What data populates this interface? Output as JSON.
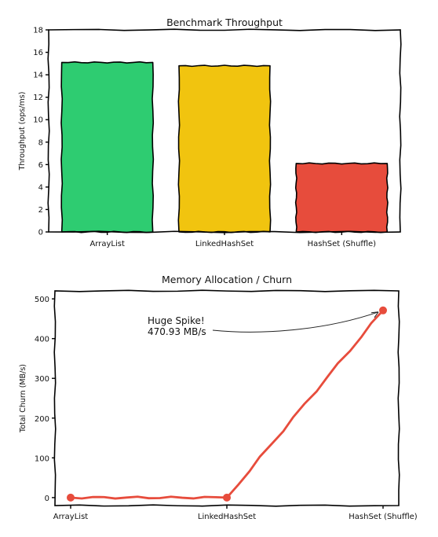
{
  "chart_data": [
    {
      "type": "bar",
      "title": "Benchmark Throughput",
      "xlabel": "",
      "ylabel": "Throughput (ops/ms)",
      "categories": [
        "ArrayList",
        "LinkedHashSet",
        "HashSet (Shuffle)"
      ],
      "values": [
        15.1,
        14.8,
        6.1
      ],
      "colors": [
        "#2ecc71",
        "#f1c40f",
        "#e74c3c"
      ],
      "ylim": [
        0,
        18
      ],
      "yticks": [
        0,
        2,
        4,
        6,
        8,
        10,
        12,
        14,
        16,
        18
      ],
      "grid": false,
      "style": "xkcd"
    },
    {
      "type": "line",
      "title": "Memory Allocation / Churn",
      "xlabel": "",
      "ylabel": "Total Churn (MB/s)",
      "categories": [
        "ArrayList",
        "LinkedHashSet",
        "HashSet (Shuffle)"
      ],
      "series": [
        {
          "values": [
            0.0,
            0.0,
            470.93
          ],
          "color": "#e74c3c"
        }
      ],
      "ylim": [
        -20,
        520
      ],
      "yticks": [
        0,
        100,
        200,
        300,
        400,
        500
      ],
      "annotation": {
        "text_line1": "Huge Spike!",
        "text_line2": "470.93 MB/s",
        "target_index": 2
      },
      "grid": false,
      "style": "xkcd"
    }
  ]
}
